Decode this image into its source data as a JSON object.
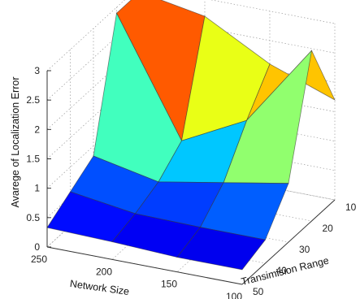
{
  "chart_data": {
    "type": "surface",
    "zlabel": "Avarege of Localization Error",
    "xlabel": "Network Size",
    "ylabel": "Transimision Range",
    "x_ticks": [
      "250",
      "200",
      "150",
      "100"
    ],
    "y_ticks": [
      "10",
      "20",
      "30",
      "40",
      "50"
    ],
    "z_ticks": [
      "0",
      "0.5",
      "1",
      "1.5",
      "2",
      "2.5",
      "3"
    ],
    "network_size": [
      250,
      200,
      150,
      100
    ],
    "transmission_range": [
      10,
      20,
      30,
      40,
      50
    ],
    "zlim": [
      0,
      3
    ],
    "grid": true,
    "colormap": "jet",
    "error": [
      [
        2.9,
        2.9,
        0.83,
        0.58,
        0.33
      ],
      [
        2.7,
        0.94,
        0.6,
        0.42,
        0.3
      ],
      [
        2.1,
        1.5,
        0.8,
        0.4,
        0.25
      ],
      [
        1.7,
        2.9,
        1.0,
        0.4,
        0.25
      ]
    ]
  }
}
